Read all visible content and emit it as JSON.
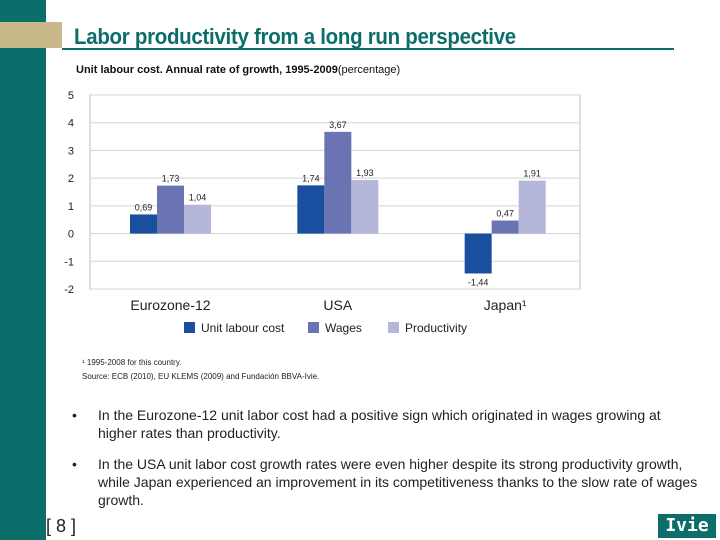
{
  "title": "Labor productivity from a long run perspective",
  "subtitle": "Unit labour cost. Annual rate of growth, 1995-2009",
  "subtitle_suffix": "(percentage)",
  "colors": {
    "teal": "#0c6e6a",
    "gold": "#c9b98a",
    "unit_labour_cost": "#1a4fa0",
    "wages": "#6b74b2",
    "productivity": "#b4b7da"
  },
  "chart_data": {
    "type": "bar",
    "categories": [
      "Eurozone-12",
      "USA",
      "Japan¹"
    ],
    "series": [
      {
        "name": "Unit labour cost",
        "values": [
          0.69,
          1.74,
          -1.44
        ],
        "labels": [
          "0,69",
          "1,74",
          "-1,44"
        ],
        "color": "#1a4fa0"
      },
      {
        "name": "Wages",
        "values": [
          1.73,
          3.67,
          0.47
        ],
        "labels": [
          "1,73",
          "3,67",
          "0,47"
        ],
        "color": "#6b74b2"
      },
      {
        "name": "Productivity",
        "values": [
          1.04,
          1.93,
          1.91
        ],
        "labels": [
          "1,04",
          "1,93",
          "1,91"
        ],
        "color": "#b4b7da"
      }
    ],
    "ylim": [
      -2,
      5
    ],
    "yticks": [
      "-2",
      "-1",
      "0",
      "1",
      "2",
      "3",
      "4",
      "5"
    ],
    "grid": true,
    "legend_position": "bottom"
  },
  "footnote": "¹ 1995-2008 for this country.",
  "source": "Source: ECB (2010), EU KLEMS (2009) and Fundación BBVA-Ivie.",
  "bullets": [
    {
      "marker": "•",
      "text": "In the Eurozone-12 unit labor cost had a positive sign which originated in wages growing at higher rates than productivity."
    },
    {
      "marker": "•",
      "text": "In the USA unit labor cost growth rates were even higher despite its strong productivity growth, while Japan experienced an improvement in its competitiveness thanks to the slow rate of wages growth."
    }
  ],
  "page_number": "[ 8 ]",
  "logo_text": "Ivie"
}
